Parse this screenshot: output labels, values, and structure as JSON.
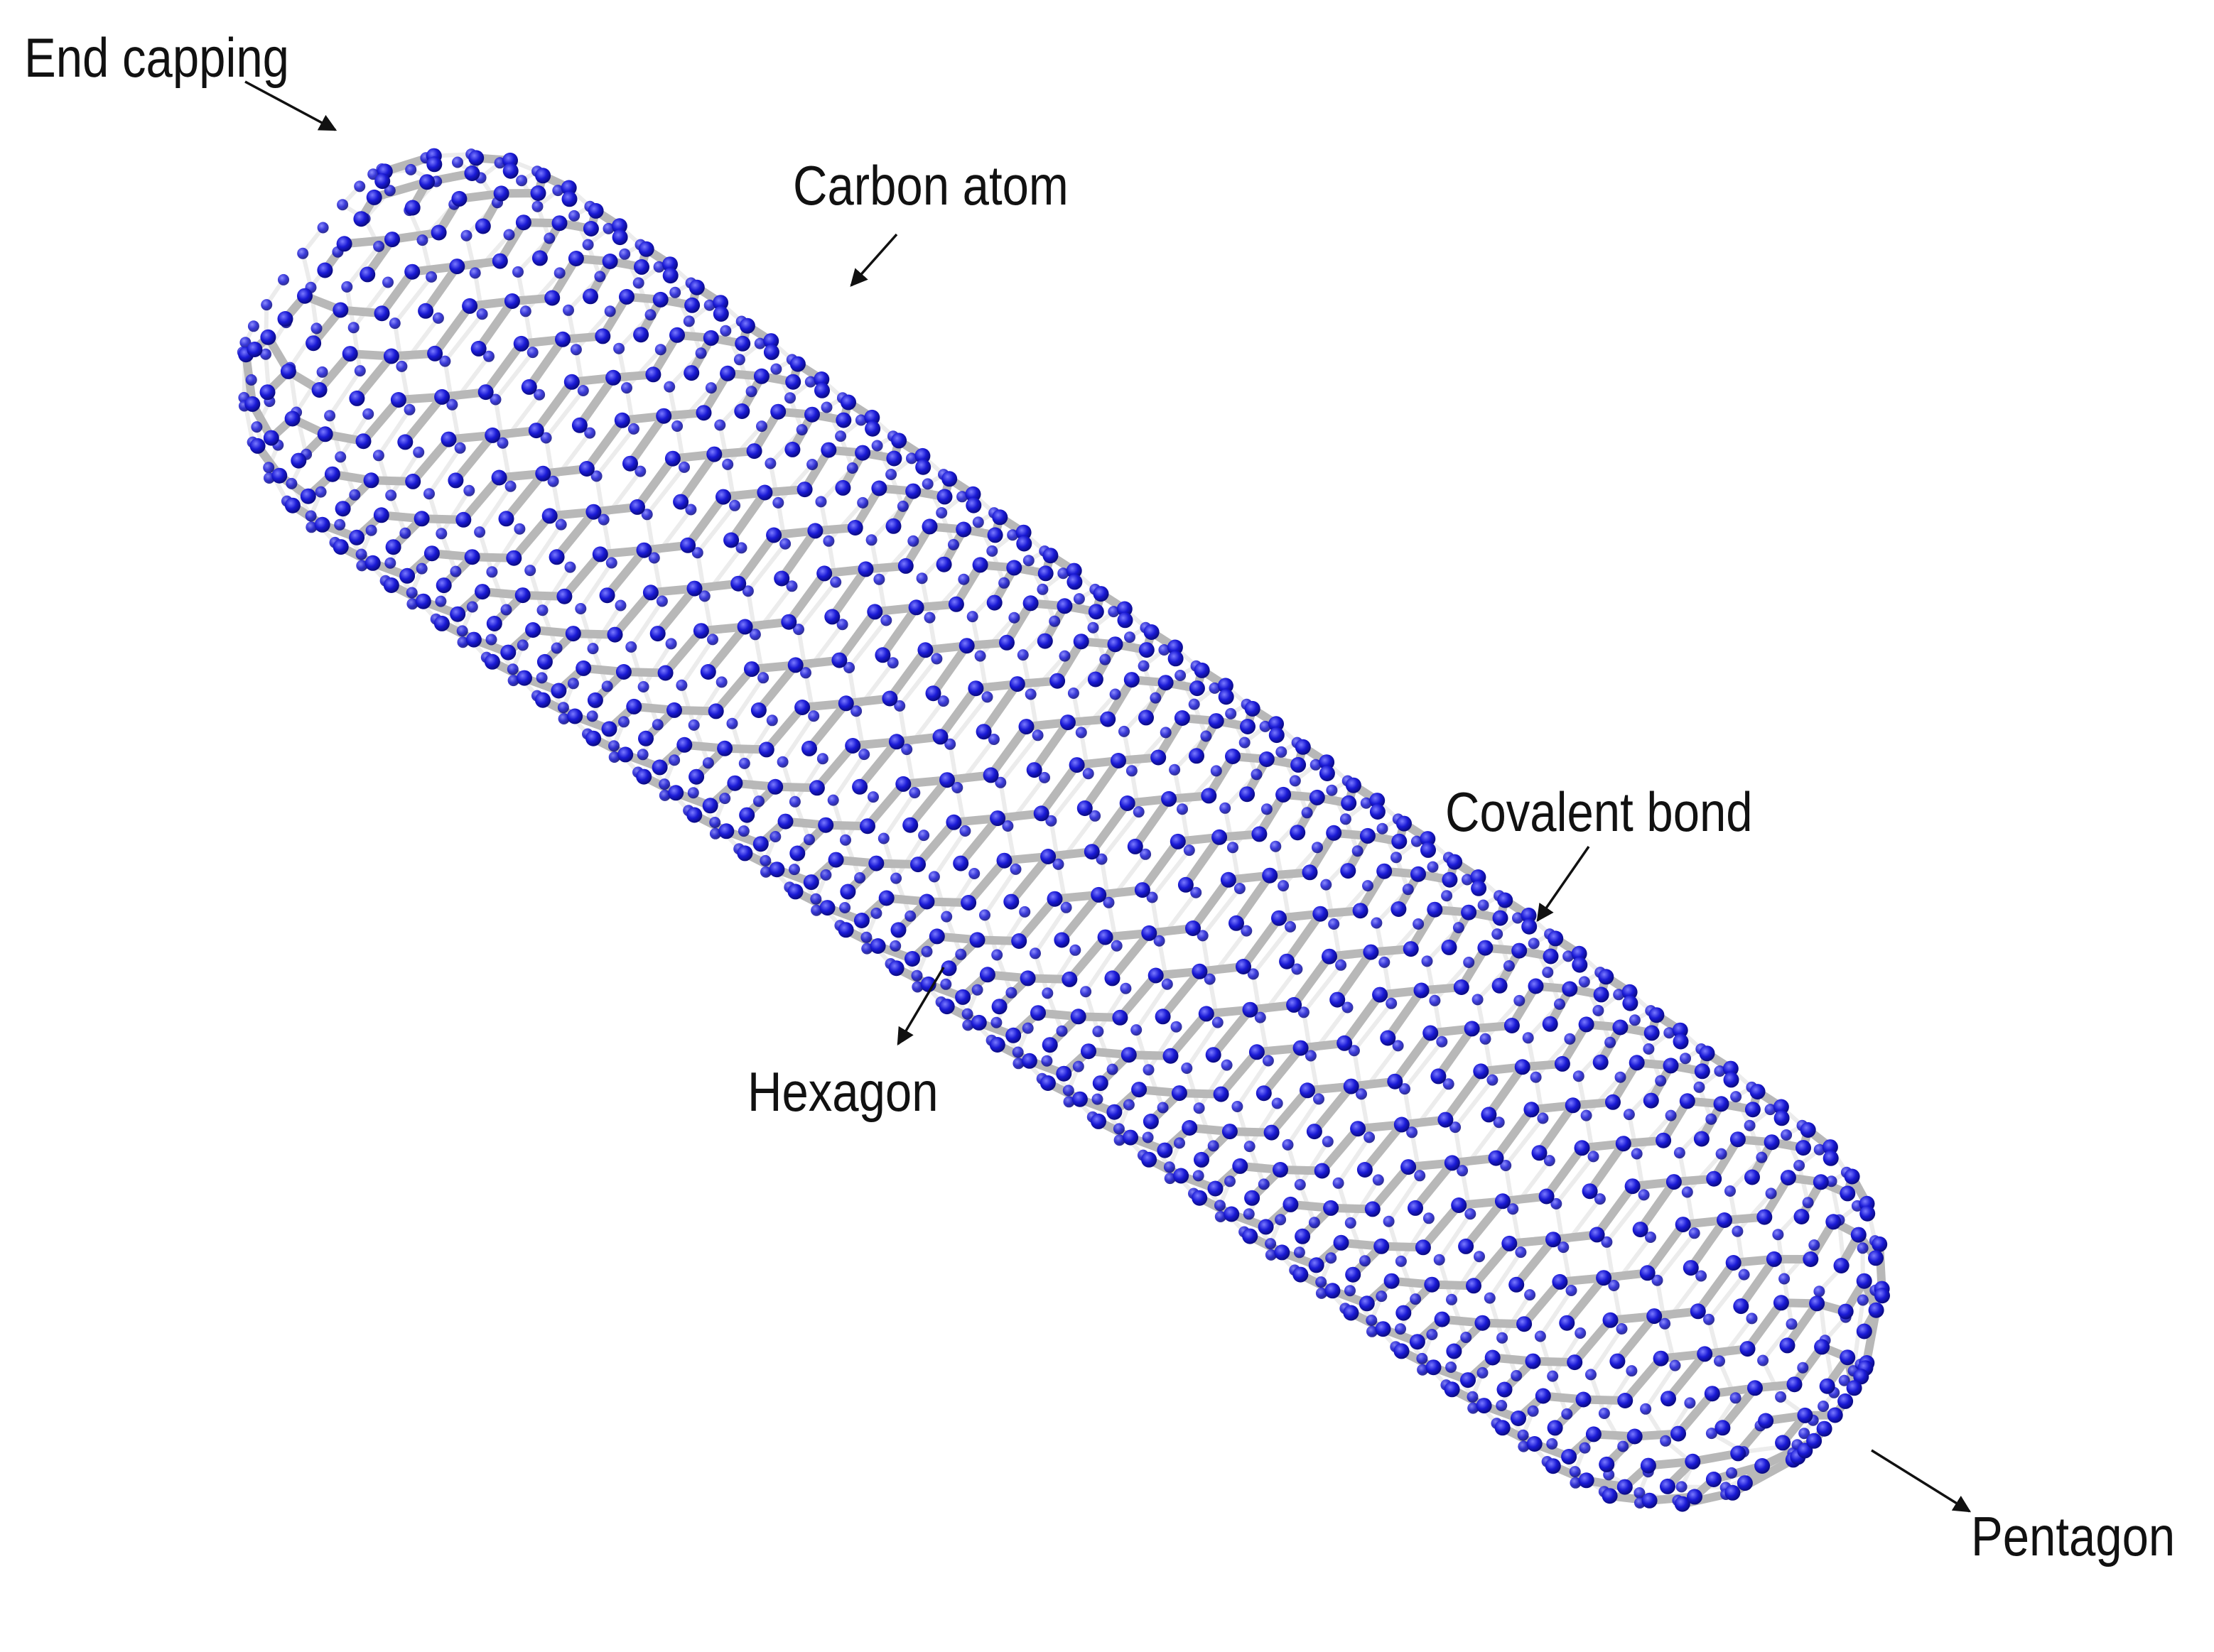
{
  "labels": {
    "end_capping": "End capping",
    "carbon_atom": "Carbon atom",
    "covalent_bond": "Covalent bond",
    "hexagon": "Hexagon",
    "pentagon": "Pentagon"
  },
  "colors": {
    "atom": "#1a1ad6",
    "atom_highlight": "#6a6aff",
    "bond": "#b8b8b8",
    "bond_light": "#ececec",
    "label_text": "#111111",
    "arrow": "#111111",
    "background": "#ffffff"
  }
}
